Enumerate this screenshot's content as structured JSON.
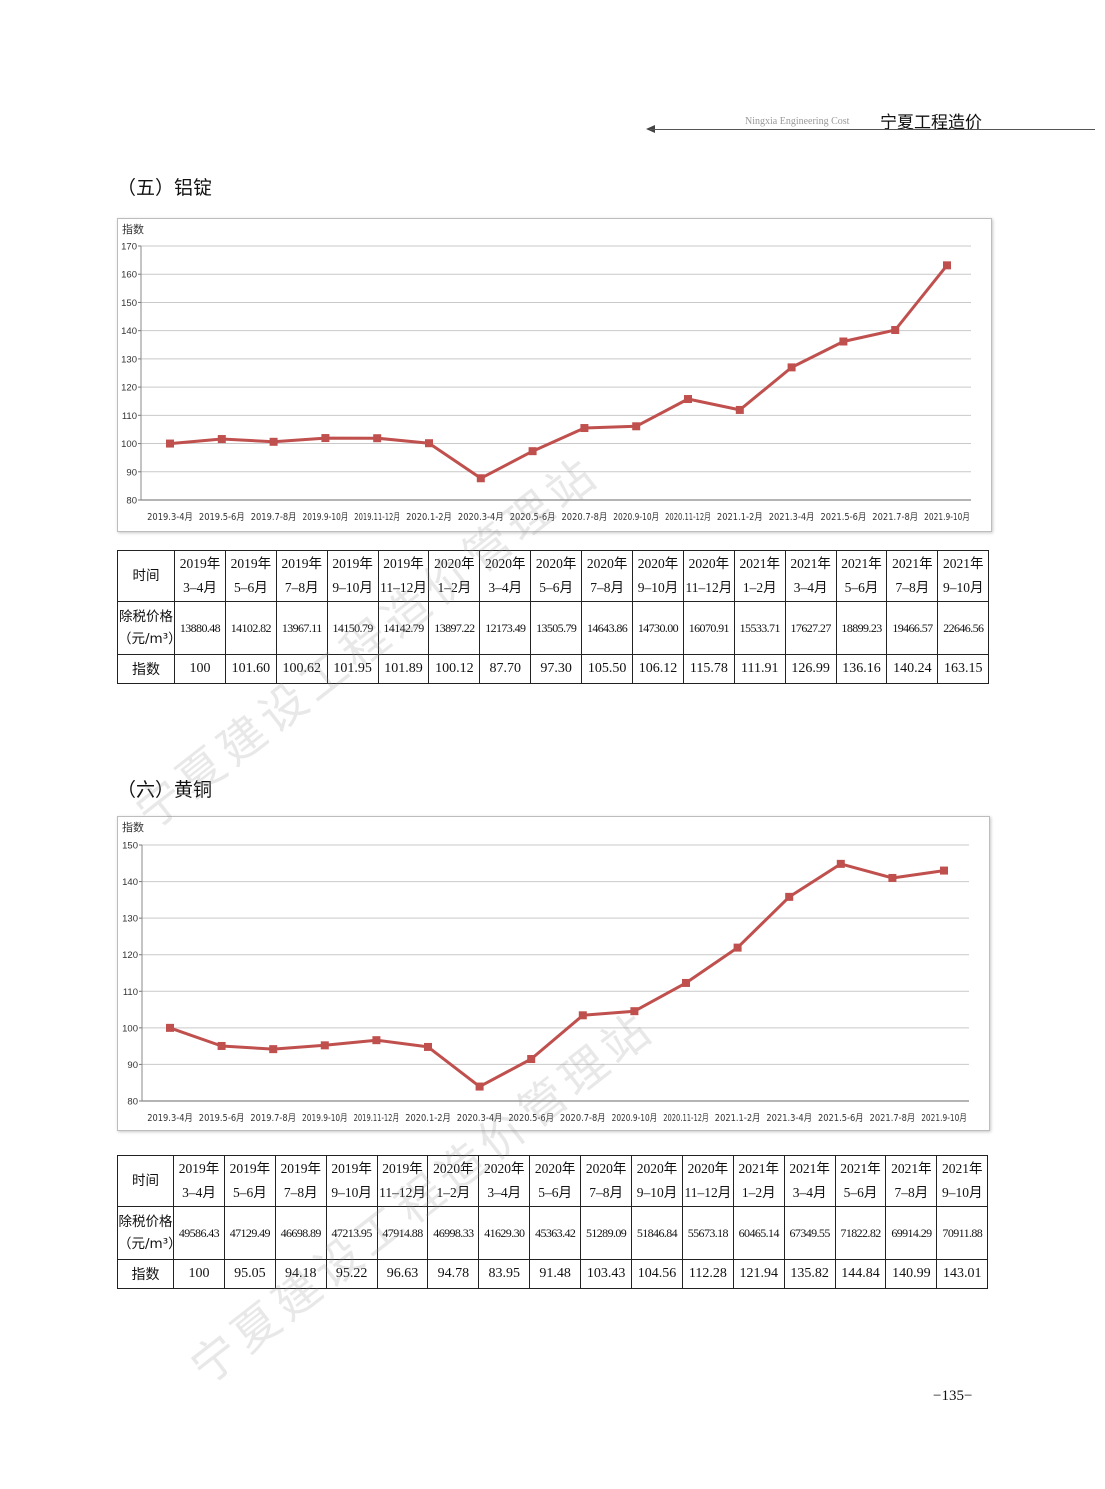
{
  "header": {
    "en": "Ningxia Engineering Cost",
    "cn": "宁夏工程造价"
  },
  "page_number": "−135−",
  "watermark_text": "宁夏建设工程造价管理站",
  "sections": [
    {
      "title": "（五）铝锭",
      "chart_data": {
        "type": "line",
        "ylabel": "指数",
        "ylim": [
          80,
          170
        ],
        "yticks": [
          80,
          90,
          100,
          110,
          120,
          130,
          140,
          150,
          160,
          170
        ],
        "categories": [
          "2019.3-4月",
          "2019.5-6月",
          "2019.7-8月",
          "2019.9-10月",
          "2019.11-12月",
          "2020.1-2月",
          "2020.3-4月",
          "2020.5-6月",
          "2020.7-8月",
          "2020.9-10月",
          "2020.11-12月",
          "2021.1-2月",
          "2021.3-4月",
          "2021.5-6月",
          "2021.7-8月",
          "2021.9-10月"
        ],
        "values": [
          100,
          101.6,
          100.62,
          101.95,
          101.89,
          100.12,
          87.7,
          97.3,
          105.5,
          106.12,
          115.78,
          111.91,
          126.99,
          136.16,
          140.24,
          163.15
        ],
        "line_color": "#c0504d",
        "grid": true
      },
      "table": {
        "row_labels": {
          "time": [
            "时间"
          ],
          "price": [
            "除税价格",
            "（元/m³）"
          ],
          "index": [
            "指数"
          ]
        },
        "columns": [
          {
            "year": "2019年",
            "month": "3–4月",
            "price": "13880.48",
            "index": "100"
          },
          {
            "year": "2019年",
            "month": "5–6月",
            "price": "14102.82",
            "index": "101.60"
          },
          {
            "year": "2019年",
            "month": "7–8月",
            "price": "13967.11",
            "index": "100.62"
          },
          {
            "year": "2019年",
            "month": "9–10月",
            "price": "14150.79",
            "index": "101.95"
          },
          {
            "year": "2019年",
            "month": "11–12月",
            "price": "14142.79",
            "index": "101.89"
          },
          {
            "year": "2020年",
            "month": "1–2月",
            "price": "13897.22",
            "index": "100.12"
          },
          {
            "year": "2020年",
            "month": "3–4月",
            "price": "12173.49",
            "index": "87.70"
          },
          {
            "year": "2020年",
            "month": "5–6月",
            "price": "13505.79",
            "index": "97.30"
          },
          {
            "year": "2020年",
            "month": "7–8月",
            "price": "14643.86",
            "index": "105.50"
          },
          {
            "year": "2020年",
            "month": "9–10月",
            "price": "14730.00",
            "index": "106.12"
          },
          {
            "year": "2020年",
            "month": "11–12月",
            "price": "16070.91",
            "index": "115.78"
          },
          {
            "year": "2021年",
            "month": "1–2月",
            "price": "15533.71",
            "index": "111.91"
          },
          {
            "year": "2021年",
            "month": "3–4月",
            "price": "17627.27",
            "index": "126.99"
          },
          {
            "year": "2021年",
            "month": "5–6月",
            "price": "18899.23",
            "index": "136.16"
          },
          {
            "year": "2021年",
            "month": "7–8月",
            "price": "19466.57",
            "index": "140.24"
          },
          {
            "year": "2021年",
            "month": "9–10月",
            "price": "22646.56",
            "index": "163.15"
          }
        ]
      }
    },
    {
      "title": "（六）黄铜",
      "chart_data": {
        "type": "line",
        "ylabel": "指数",
        "ylim": [
          80,
          150
        ],
        "yticks": [
          80,
          90,
          100,
          110,
          120,
          130,
          140,
          150
        ],
        "categories": [
          "2019.3-4月",
          "2019.5-6月",
          "2019.7-8月",
          "2019.9-10月",
          "2019.11-12月",
          "2020.1-2月",
          "2020.3-4月",
          "2020.5-6月",
          "2020.7-8月",
          "2020.9-10月",
          "2020.11-12月",
          "2021.1-2月",
          "2021.3-4月",
          "2021.5-6月",
          "2021.7-8月",
          "2021.9-10月"
        ],
        "values": [
          100,
          95.05,
          94.18,
          95.22,
          96.63,
          94.78,
          83.95,
          91.48,
          103.43,
          104.56,
          112.28,
          121.94,
          135.82,
          144.84,
          140.99,
          143.01
        ],
        "line_color": "#c0504d",
        "grid": true
      },
      "table": {
        "row_labels": {
          "time": [
            "时间"
          ],
          "price": [
            "除税价格",
            "（元/m³）"
          ],
          "index": [
            "指数"
          ]
        },
        "columns": [
          {
            "year": "2019年",
            "month": "3–4月",
            "price": "49586.43",
            "index": "100"
          },
          {
            "year": "2019年",
            "month": "5–6月",
            "price": "47129.49",
            "index": "95.05"
          },
          {
            "year": "2019年",
            "month": "7–8月",
            "price": "46698.89",
            "index": "94.18"
          },
          {
            "year": "2019年",
            "month": "9–10月",
            "price": "47213.95",
            "index": "95.22"
          },
          {
            "year": "2019年",
            "month": "11–12月",
            "price": "47914.88",
            "index": "96.63"
          },
          {
            "year": "2020年",
            "month": "1–2月",
            "price": "46998.33",
            "index": "94.78"
          },
          {
            "year": "2020年",
            "month": "3–4月",
            "price": "41629.30",
            "index": "83.95"
          },
          {
            "year": "2020年",
            "month": "5–6月",
            "price": "45363.42",
            "index": "91.48"
          },
          {
            "year": "2020年",
            "month": "7–8月",
            "price": "51289.09",
            "index": "103.43"
          },
          {
            "year": "2020年",
            "month": "9–10月",
            "price": "51846.84",
            "index": "104.56"
          },
          {
            "year": "2020年",
            "month": "11–12月",
            "price": "55673.18",
            "index": "112.28"
          },
          {
            "year": "2021年",
            "month": "1–2月",
            "price": "60465.14",
            "index": "121.94"
          },
          {
            "year": "2021年",
            "month": "3–4月",
            "price": "67349.55",
            "index": "135.82"
          },
          {
            "year": "2021年",
            "month": "5–6月",
            "price": "71822.82",
            "index": "144.84"
          },
          {
            "year": "2021年",
            "month": "7–8月",
            "price": "69914.29",
            "index": "140.99"
          },
          {
            "year": "2021年",
            "month": "9–10月",
            "price": "70911.88",
            "index": "143.01"
          }
        ]
      }
    }
  ]
}
